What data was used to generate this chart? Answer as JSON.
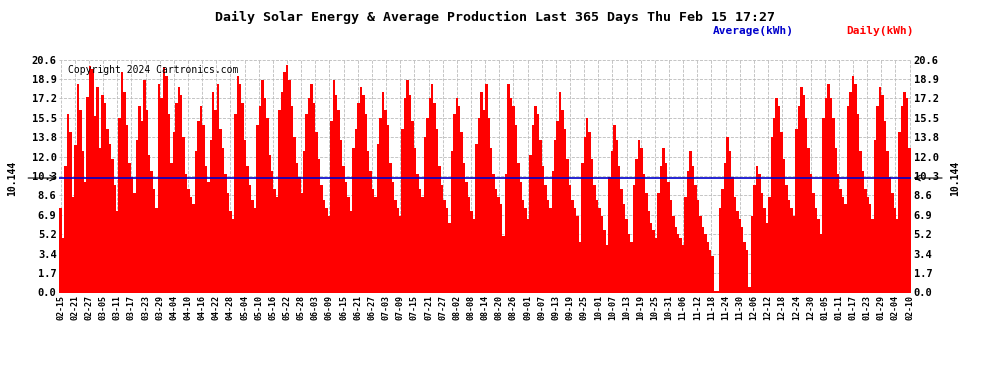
{
  "title": "Daily Solar Energy & Average Production Last 365 Days Thu Feb 15 17:27",
  "copyright": "Copyright 2024 Cartronics.com",
  "average_label": "10.144",
  "average_value": 10.144,
  "yticks": [
    0.0,
    1.7,
    3.4,
    5.2,
    6.9,
    8.6,
    10.3,
    12.0,
    13.8,
    15.5,
    17.2,
    18.9,
    20.6
  ],
  "ylim": [
    0.0,
    20.6
  ],
  "bar_color": "#ff0000",
  "average_line_color": "#0000cc",
  "background_color": "#ffffff",
  "grid_color": "#bbbbbb",
  "legend_average_color": "#0000cc",
  "legend_daily_color": "#ff0000",
  "xtick_labels": [
    "02-15",
    "02-21",
    "02-27",
    "03-05",
    "03-11",
    "03-17",
    "03-23",
    "03-29",
    "04-04",
    "04-10",
    "04-16",
    "04-22",
    "04-28",
    "05-04",
    "05-10",
    "05-16",
    "05-22",
    "05-28",
    "06-03",
    "06-09",
    "06-15",
    "06-21",
    "06-27",
    "07-03",
    "07-09",
    "07-15",
    "07-21",
    "07-27",
    "08-02",
    "08-08",
    "08-14",
    "08-20",
    "08-26",
    "09-01",
    "09-07",
    "09-13",
    "09-19",
    "09-25",
    "10-01",
    "10-07",
    "10-13",
    "10-19",
    "10-25",
    "10-31",
    "11-06",
    "11-12",
    "11-18",
    "11-24",
    "11-30",
    "12-06",
    "12-12",
    "12-18",
    "12-24",
    "12-30",
    "01-05",
    "01-11",
    "01-17",
    "01-23",
    "01-29",
    "02-04",
    "02-10"
  ],
  "daily_values": [
    7.5,
    4.8,
    11.2,
    15.8,
    14.2,
    8.5,
    13.1,
    18.5,
    16.2,
    12.5,
    9.8,
    17.3,
    20.1,
    19.8,
    15.6,
    18.2,
    12.8,
    17.5,
    16.8,
    14.5,
    13.2,
    11.8,
    9.5,
    7.2,
    15.5,
    19.5,
    17.8,
    14.8,
    11.5,
    10.2,
    8.8,
    13.5,
    16.5,
    15.2,
    18.8,
    16.2,
    12.2,
    10.8,
    9.2,
    7.5,
    18.5,
    17.2,
    20.0,
    19.2,
    15.8,
    11.5,
    14.2,
    16.8,
    18.2,
    17.5,
    13.8,
    10.5,
    9.2,
    8.5,
    7.8,
    12.5,
    15.2,
    16.5,
    14.8,
    11.2,
    9.8,
    13.5,
    17.8,
    16.2,
    18.5,
    14.5,
    12.8,
    10.5,
    8.8,
    7.2,
    6.5,
    15.8,
    19.2,
    18.5,
    16.8,
    13.5,
    11.2,
    9.5,
    8.2,
    7.5,
    14.8,
    16.5,
    18.8,
    17.2,
    15.5,
    12.2,
    10.8,
    9.2,
    8.5,
    16.2,
    17.8,
    19.5,
    20.2,
    18.8,
    16.5,
    13.8,
    11.5,
    10.2,
    8.8,
    12.5,
    15.8,
    17.2,
    18.5,
    16.8,
    14.2,
    11.8,
    9.5,
    8.2,
    7.5,
    6.8,
    15.2,
    18.8,
    17.5,
    16.2,
    13.5,
    11.2,
    9.8,
    8.5,
    7.2,
    12.8,
    14.5,
    16.8,
    18.2,
    17.5,
    15.8,
    12.5,
    10.8,
    9.2,
    8.5,
    13.2,
    15.5,
    17.8,
    16.2,
    14.8,
    11.5,
    9.8,
    8.2,
    7.5,
    6.8,
    14.5,
    17.2,
    18.8,
    17.5,
    15.2,
    12.8,
    10.5,
    9.2,
    8.5,
    13.8,
    15.5,
    17.2,
    18.5,
    16.8,
    14.5,
    11.2,
    9.5,
    8.2,
    7.5,
    6.2,
    12.5,
    15.8,
    17.2,
    16.5,
    14.2,
    11.5,
    9.8,
    8.5,
    7.2,
    6.5,
    13.2,
    15.5,
    17.8,
    16.2,
    18.5,
    15.5,
    12.8,
    10.5,
    9.2,
    8.5,
    7.8,
    5.0,
    10.5,
    18.5,
    17.2,
    16.5,
    14.8,
    11.5,
    9.8,
    8.2,
    7.5,
    6.5,
    12.2,
    14.8,
    16.5,
    15.8,
    13.5,
    11.2,
    9.5,
    8.2,
    7.5,
    10.8,
    13.5,
    15.2,
    17.8,
    16.2,
    14.5,
    11.8,
    9.5,
    8.2,
    7.5,
    6.8,
    4.5,
    11.5,
    13.8,
    15.5,
    14.2,
    11.8,
    9.5,
    8.2,
    7.5,
    6.8,
    5.5,
    4.2,
    10.2,
    12.5,
    14.8,
    13.5,
    11.2,
    9.2,
    7.8,
    6.5,
    5.2,
    4.5,
    9.5,
    11.8,
    13.5,
    12.8,
    10.5,
    8.8,
    7.2,
    6.2,
    5.5,
    4.8,
    8.8,
    11.2,
    12.8,
    11.5,
    9.8,
    8.2,
    6.8,
    5.8,
    5.2,
    4.8,
    4.2,
    8.5,
    10.8,
    12.5,
    11.2,
    9.5,
    8.2,
    6.8,
    5.8,
    5.2,
    4.5,
    3.8,
    3.2,
    0.1,
    0.1,
    7.5,
    9.2,
    11.5,
    13.8,
    12.5,
    10.2,
    8.5,
    7.2,
    6.5,
    5.8,
    4.5,
    3.8,
    0.5,
    6.8,
    9.5,
    11.2,
    10.5,
    8.8,
    7.5,
    6.2,
    8.5,
    13.8,
    15.5,
    17.2,
    16.5,
    14.2,
    11.8,
    9.5,
    8.2,
    7.5,
    6.8,
    14.5,
    16.5,
    18.2,
    17.5,
    15.5,
    12.8,
    10.5,
    8.8,
    7.5,
    6.5,
    5.2,
    15.5,
    17.2,
    18.5,
    17.2,
    15.5,
    12.8,
    10.5,
    9.2,
    8.5,
    7.8,
    16.5,
    17.8,
    19.2,
    18.5,
    15.8,
    12.5,
    10.8,
    9.2,
    8.5,
    7.8,
    6.5,
    13.5,
    16.5,
    18.2,
    17.5,
    15.2,
    12.5,
    10.2,
    8.8,
    7.5,
    6.5,
    14.2,
    16.5,
    17.8,
    17.2,
    12.8
  ]
}
